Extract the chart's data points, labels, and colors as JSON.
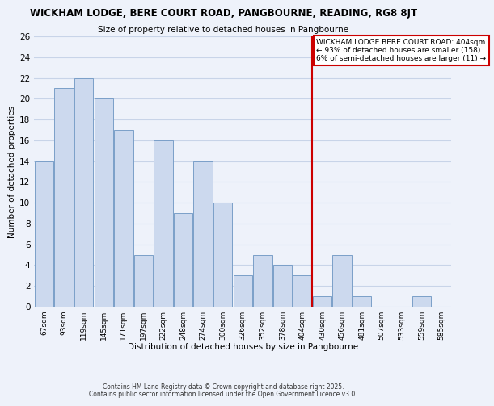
{
  "title": "WICKHAM LODGE, BERE COURT ROAD, PANGBOURNE, READING, RG8 8JT",
  "subtitle": "Size of property relative to detached houses in Pangbourne",
  "xlabel": "Distribution of detached houses by size in Pangbourne",
  "ylabel": "Number of detached properties",
  "bar_color": "#ccd9ee",
  "bar_edge_color": "#7a9fc8",
  "background_color": "#eef2fa",
  "grid_color": "#c8d4e8",
  "bins": [
    "67sqm",
    "93sqm",
    "119sqm",
    "145sqm",
    "171sqm",
    "197sqm",
    "222sqm",
    "248sqm",
    "274sqm",
    "300sqm",
    "326sqm",
    "352sqm",
    "378sqm",
    "404sqm",
    "430sqm",
    "456sqm",
    "481sqm",
    "507sqm",
    "533sqm",
    "559sqm",
    "585sqm"
  ],
  "values": [
    14,
    21,
    22,
    20,
    17,
    5,
    16,
    9,
    14,
    10,
    3,
    5,
    4,
    3,
    1,
    5,
    1,
    0,
    0,
    1,
    0
  ],
  "vline_x_index": 13,
  "vline_color": "#cc0000",
  "annotation_text": "WICKHAM LODGE BERE COURT ROAD: 404sqm\n← 93% of detached houses are smaller (158)\n6% of semi-detached houses are larger (11) →",
  "annotation_box_color": "#ffffff",
  "annotation_box_edge_color": "#cc0000",
  "ylim": [
    0,
    26
  ],
  "yticks": [
    0,
    2,
    4,
    6,
    8,
    10,
    12,
    14,
    16,
    18,
    20,
    22,
    24,
    26
  ],
  "footnote1": "Contains HM Land Registry data © Crown copyright and database right 2025.",
  "footnote2": "Contains public sector information licensed under the Open Government Licence v3.0."
}
